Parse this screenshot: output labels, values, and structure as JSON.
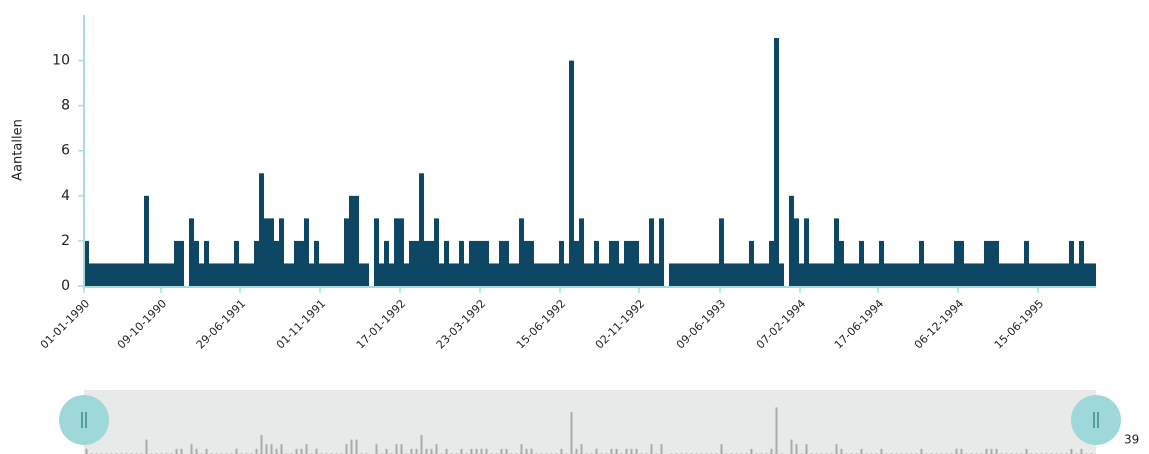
{
  "chart_data": {
    "type": "bar",
    "y_label": "Aantallen",
    "color": "#0d4763",
    "values": [
      2,
      1,
      1,
      1,
      1,
      1,
      1,
      1,
      1,
      1,
      1,
      1,
      4,
      1,
      1,
      1,
      1,
      1,
      2,
      2,
      0,
      3,
      2,
      1,
      2,
      1,
      1,
      1,
      1,
      1,
      2,
      1,
      1,
      1,
      2,
      5,
      3,
      3,
      2,
      3,
      1,
      1,
      2,
      2,
      3,
      1,
      2,
      1,
      1,
      1,
      1,
      1,
      3,
      4,
      4,
      1,
      1,
      0,
      3,
      1,
      2,
      1,
      3,
      3,
      1,
      2,
      2,
      5,
      2,
      2,
      3,
      1,
      2,
      1,
      1,
      2,
      1,
      2,
      2,
      2,
      2,
      1,
      1,
      2,
      2,
      1,
      1,
      3,
      2,
      2,
      1,
      1,
      1,
      1,
      1,
      2,
      1,
      10,
      2,
      3,
      1,
      1,
      2,
      1,
      1,
      2,
      2,
      1,
      2,
      2,
      2,
      1,
      1,
      3,
      1,
      3,
      0,
      1,
      1,
      1,
      1,
      1,
      1,
      1,
      1,
      1,
      1,
      3,
      1,
      1,
      1,
      1,
      1,
      2,
      1,
      1,
      1,
      2,
      11,
      1,
      0,
      4,
      3,
      1,
      3,
      1,
      1,
      1,
      1,
      1,
      3,
      2,
      1,
      1,
      1,
      2,
      1,
      1,
      1,
      2,
      1,
      1,
      1,
      1,
      1,
      1,
      1,
      2,
      1,
      1,
      1,
      1,
      1,
      1,
      2,
      2,
      1,
      1,
      1,
      1,
      2,
      2,
      2,
      1,
      1,
      1,
      1,
      1,
      2,
      1,
      1,
      1,
      1,
      1,
      1,
      1,
      1,
      2,
      1,
      2,
      1,
      1,
      1
    ],
    "xlim": [
      0,
      202.4
    ],
    "xticks": [
      {
        "value": 0,
        "label": "01-01-1990"
      },
      {
        "value": 15.4,
        "label": "09-10-1990"
      },
      {
        "value": 31.2,
        "label": "29-06-1991"
      },
      {
        "value": 47.2,
        "label": "01-11-1991"
      },
      {
        "value": 63.2,
        "label": "17-01-1992"
      },
      {
        "value": 79.2,
        "label": "23-03-1992"
      },
      {
        "value": 95.2,
        "label": "15-06-1992"
      },
      {
        "value": 111,
        "label": "02-11-1992"
      },
      {
        "value": 127.2,
        "label": "09-06-1993"
      },
      {
        "value": 143.2,
        "label": "07-02-1994"
      },
      {
        "value": 158.8,
        "label": "17-06-1994"
      },
      {
        "value": 174.8,
        "label": "06-12-1994"
      },
      {
        "value": 190.8,
        "label": "15-06-1995"
      }
    ],
    "ylim": [
      0,
      11.8
    ],
    "yticks": [
      0,
      2,
      4,
      6,
      8,
      10
    ],
    "navigator_color": "#aaaaaa",
    "navigator_label": "39"
  }
}
